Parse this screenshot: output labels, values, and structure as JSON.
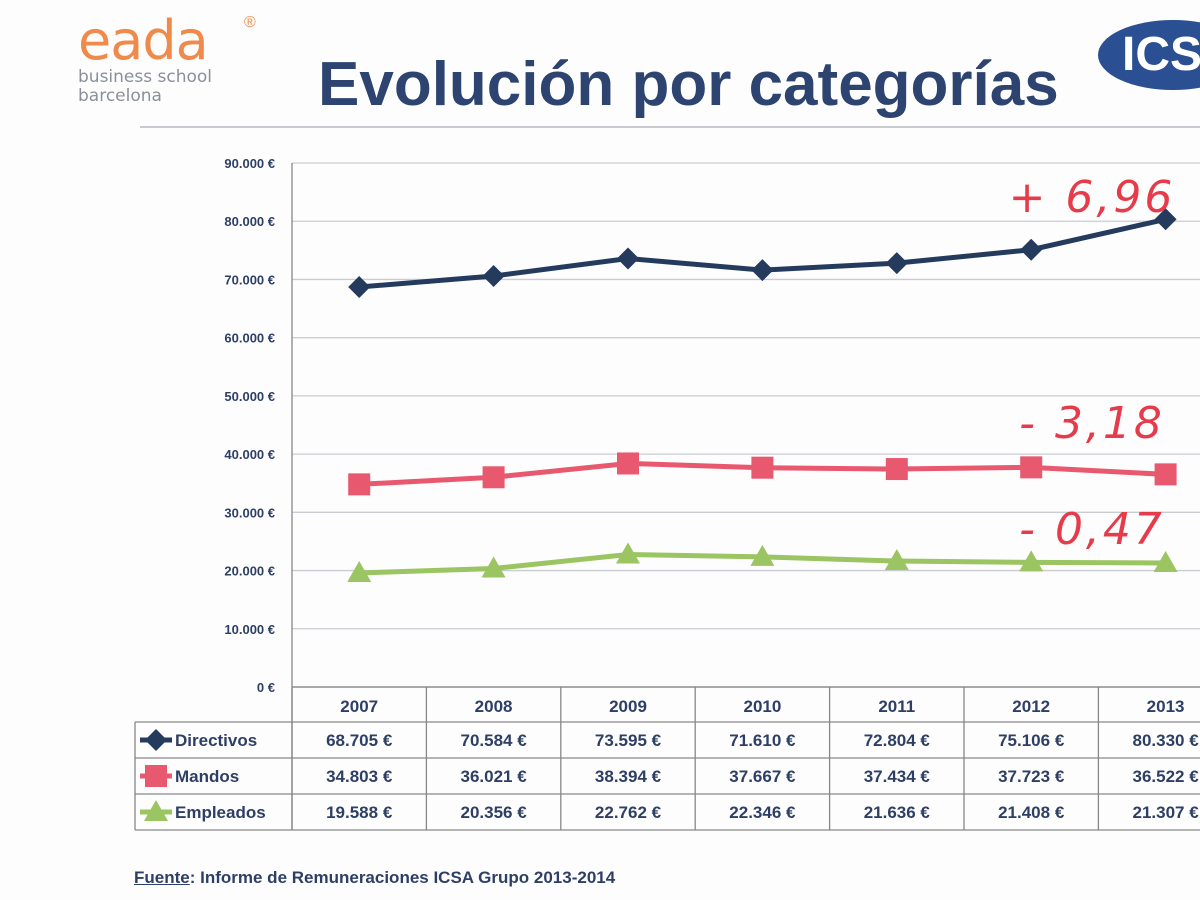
{
  "header": {
    "logo_text": "eada",
    "logo_registered": "®",
    "logo_subtitle_1": "business school",
    "logo_subtitle_2": "barcelona",
    "title": "Evolución por categorías",
    "partner_logo_text": "ICSA"
  },
  "colors": {
    "directivos": "#253b5e",
    "mandos": "#e8586f",
    "empleados": "#9bc463",
    "annotation": "#e63b4a"
  },
  "chart_data": {
    "type": "line",
    "title": "Evolución por categorías",
    "categories": [
      "2007",
      "2008",
      "2009",
      "2010",
      "2011",
      "2012",
      "2013"
    ],
    "ylim": [
      0,
      90000
    ],
    "yticks": [
      0,
      10000,
      20000,
      30000,
      40000,
      50000,
      60000,
      70000,
      80000,
      90000
    ],
    "ytick_labels": [
      "0 €",
      "10.000 €",
      "20.000 €",
      "30.000 €",
      "40.000 €",
      "50.000 €",
      "60.000 €",
      "70.000 €",
      "80.000 €",
      "90.000 €"
    ],
    "grid": true,
    "legend_placement": "table-below",
    "series": [
      {
        "name": "Directivos",
        "marker": "diamond",
        "values": [
          68705,
          70584,
          73595,
          71610,
          72804,
          75106,
          80330
        ],
        "labels": [
          "68.705 €",
          "70.584 €",
          "73.595 €",
          "71.610 €",
          "72.804 €",
          "75.106 €",
          "80.330 €"
        ]
      },
      {
        "name": "Mandos",
        "marker": "square",
        "values": [
          34803,
          36021,
          38394,
          37667,
          37434,
          37723,
          36522
        ],
        "labels": [
          "34.803 €",
          "36.021 €",
          "38.394 €",
          "37.667 €",
          "37.434 €",
          "37.723 €",
          "36.522 €"
        ]
      },
      {
        "name": "Empleados",
        "marker": "triangle",
        "values": [
          19588,
          20356,
          22762,
          22346,
          21636,
          21408,
          21307
        ],
        "labels": [
          "19.588 €",
          "20.356 €",
          "22.762 €",
          "22.346 €",
          "21.636 €",
          "21.408 €",
          "21.307 €"
        ]
      }
    ],
    "annotations": [
      {
        "text": "+ 6,96",
        "series": "Directivos"
      },
      {
        "text": "- 3,18",
        "series": "Mandos"
      },
      {
        "text": "- 0,47",
        "series": "Empleados"
      }
    ]
  },
  "footer": {
    "source_label": "Fuente",
    "source_text": ": Informe de Remuneraciones ICSA Grupo 2013-2014"
  }
}
